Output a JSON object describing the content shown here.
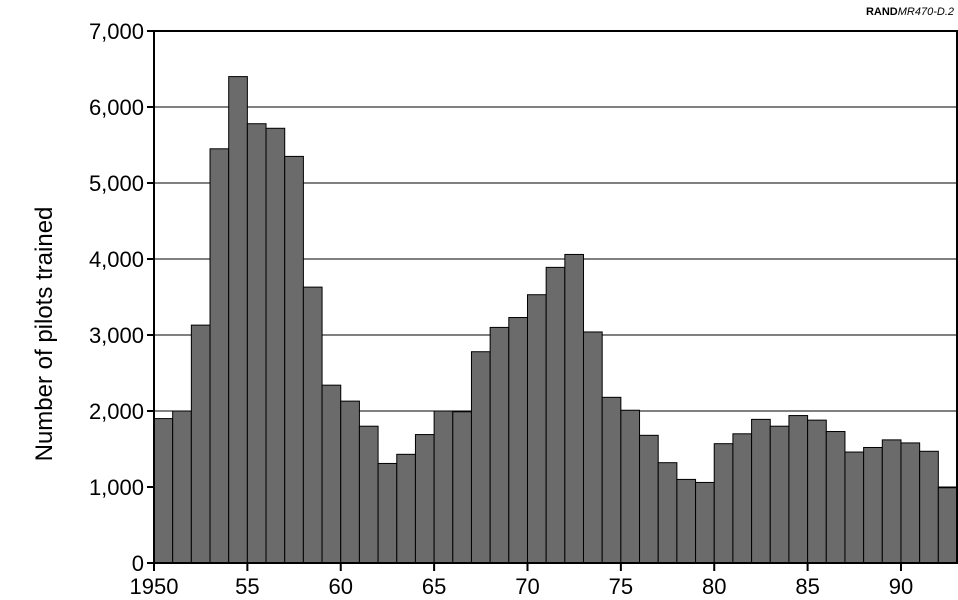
{
  "source_tag": {
    "org": "RAND",
    "code": "MR470-D.2"
  },
  "chart_data": {
    "type": "bar",
    "ylabel": "Number of pilots trained",
    "xlabel": "",
    "ylim": [
      0,
      7000
    ],
    "yticks": [
      0,
      1000,
      2000,
      3000,
      4000,
      5000,
      6000,
      7000
    ],
    "ytick_labels": [
      "0",
      "1,000",
      "2,000",
      "3,000",
      "4,000",
      "5,000",
      "6,000",
      "7,000"
    ],
    "xticks": [
      1950,
      1955,
      1960,
      1965,
      1970,
      1975,
      1980,
      1985,
      1990
    ],
    "xtick_labels": [
      "1950",
      "55",
      "60",
      "65",
      "70",
      "75",
      "80",
      "85",
      "90"
    ],
    "grid": "horizontal",
    "colors": {
      "bar": "#6b6b6b",
      "edge": "#000000",
      "grid": "#000000"
    },
    "categories": [
      1950,
      1951,
      1952,
      1953,
      1954,
      1955,
      1956,
      1957,
      1958,
      1959,
      1960,
      1961,
      1962,
      1963,
      1964,
      1965,
      1966,
      1967,
      1968,
      1969,
      1970,
      1971,
      1972,
      1973,
      1974,
      1975,
      1976,
      1977,
      1978,
      1979,
      1980,
      1981,
      1982,
      1983,
      1984,
      1985,
      1986,
      1987,
      1988,
      1989,
      1990,
      1991,
      1992
    ],
    "values": [
      1900,
      2000,
      3130,
      5450,
      6400,
      5780,
      5720,
      5350,
      3630,
      2340,
      2130,
      1800,
      1310,
      1430,
      1690,
      2000,
      1990,
      2780,
      3100,
      3230,
      3530,
      3890,
      4060,
      3040,
      2180,
      2010,
      1680,
      1320,
      1100,
      1060,
      1570,
      1700,
      1890,
      1800,
      1940,
      1880,
      1730,
      1460,
      1520,
      1620,
      1580,
      1470,
      990
    ]
  }
}
